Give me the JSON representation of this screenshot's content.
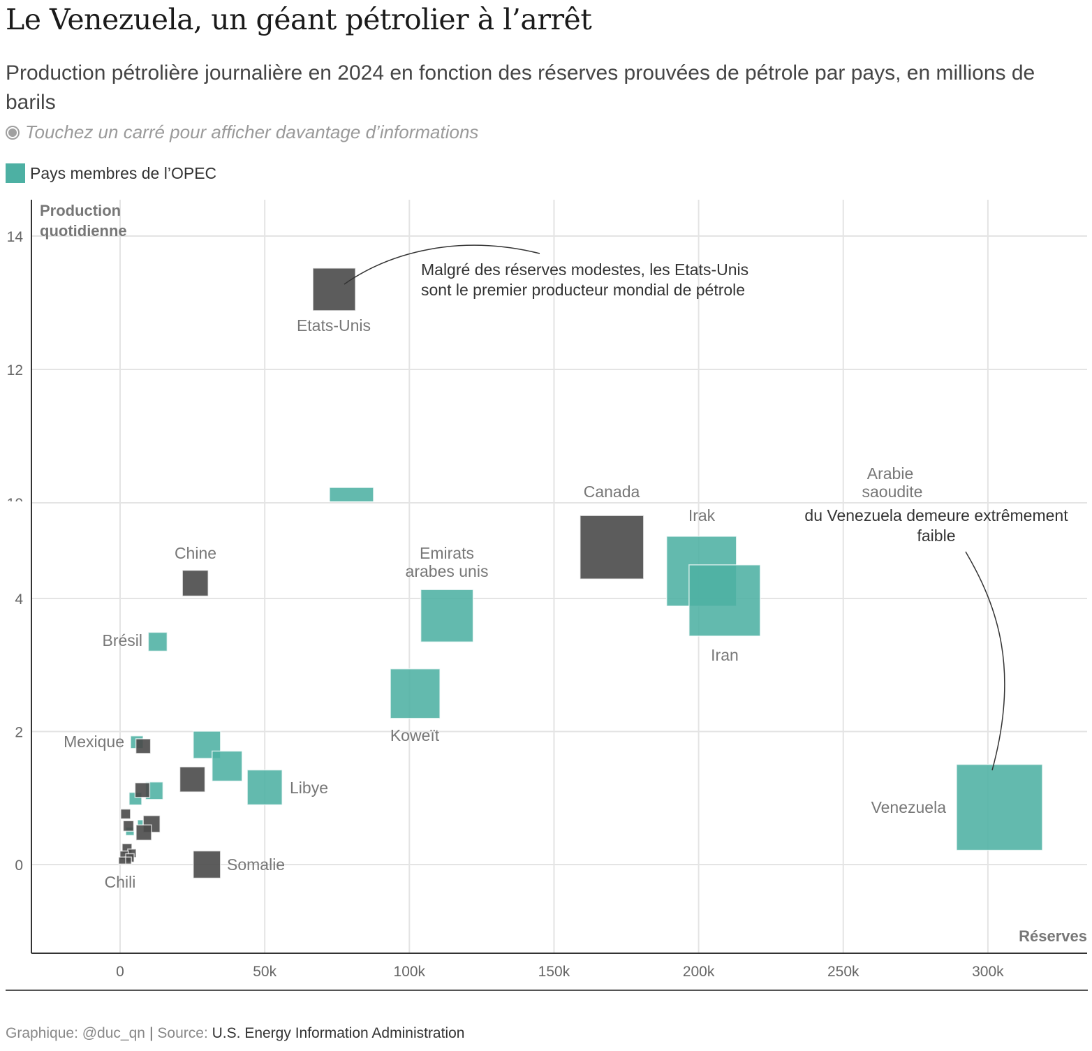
{
  "title": "Le Venezuela, un géant pétrolier à l’arrêt",
  "subtitle": "Production pétrolière journalière en 2024 en fonction des réserves prouvées de pétrole par pays, en millions de barils",
  "hint": "Touchez un carré pour afficher davantage d’informations",
  "legend": {
    "label": "Pays membres de l’OPEC",
    "color": "#4db0a3"
  },
  "colors": {
    "opec": "#4db0a3",
    "other": "#4a4a4a"
  },
  "chart_data": {
    "type": "scatter",
    "marker": "square",
    "xlabel": "Réserves",
    "ylabel_lines": [
      "Production",
      "quotidienne"
    ],
    "x_ticks": [
      "0",
      "50k",
      "100k",
      "150k",
      "200k",
      "250k",
      "300k"
    ],
    "x_tick_values": [
      0,
      50,
      100,
      150,
      200,
      250,
      300
    ],
    "y_ticks": [
      "14",
      "12",
      "10",
      "4",
      "2",
      "0"
    ],
    "y_tick_values": [
      14,
      12,
      10,
      4,
      2,
      0
    ],
    "xlim": [
      -30,
      335
    ],
    "ylim": [
      -1.3,
      14.5
    ],
    "grid": true,
    "points": [
      {
        "x": 74,
        "y": 13.2,
        "size": 61,
        "opec": false,
        "label": "Etats-Unis"
      },
      {
        "x": 80,
        "y": 9.9,
        "size": 63,
        "opec": true,
        "label": "Arabie saoudite"
      },
      {
        "x": 170,
        "y": 4.77,
        "size": 91,
        "opec": false,
        "label": "Canada"
      },
      {
        "x": 201,
        "y": 4.41,
        "size": 100,
        "opec": true,
        "label": "Irak"
      },
      {
        "x": 209,
        "y": 3.97,
        "size": 102,
        "opec": true,
        "label": "Iran"
      },
      {
        "x": 113,
        "y": 3.74,
        "size": 75,
        "opec": true,
        "label": "Emirats arabes unis"
      },
      {
        "x": 102,
        "y": 2.57,
        "size": 71,
        "opec": true,
        "label": "Koweït"
      },
      {
        "x": 304,
        "y": 0.86,
        "size": 123,
        "opec": true,
        "label": "Venezuela"
      },
      {
        "x": 26,
        "y": 4.23,
        "size": 37,
        "opec": false,
        "label": "Chine"
      },
      {
        "x": 13,
        "y": 3.35,
        "size": 27,
        "opec": true,
        "label": "Brésil"
      },
      {
        "x": 5.8,
        "y": 1.84,
        "size": 18,
        "opec": true,
        "label": ""
      },
      {
        "x": 8,
        "y": 1.78,
        "size": 21,
        "opec": false,
        "label": "Mexique"
      },
      {
        "x": 30,
        "y": 1.8,
        "size": 39,
        "opec": true,
        "label": ""
      },
      {
        "x": 37,
        "y": 1.48,
        "size": 43,
        "opec": true,
        "label": ""
      },
      {
        "x": 50,
        "y": 1.16,
        "size": 50,
        "opec": true,
        "label": "Libye"
      },
      {
        "x": 25,
        "y": 1.28,
        "size": 36,
        "opec": false,
        "label": ""
      },
      {
        "x": 11.8,
        "y": 1.11,
        "size": 25,
        "opec": true,
        "label": ""
      },
      {
        "x": 5.3,
        "y": 0.99,
        "size": 18,
        "opec": true,
        "label": ""
      },
      {
        "x": 7.7,
        "y": 1.12,
        "size": 21,
        "opec": false,
        "label": ""
      },
      {
        "x": 30,
        "y": 0,
        "size": 39,
        "opec": false,
        "label": "Somalie"
      },
      {
        "x": 3.4,
        "y": 0.5,
        "size": 12,
        "opec": true,
        "label": ""
      },
      {
        "x": 7,
        "y": 0.63,
        "size": 8,
        "opec": true,
        "label": ""
      },
      {
        "x": 1.9,
        "y": 0.76,
        "size": 14,
        "opec": false,
        "label": ""
      },
      {
        "x": 10.9,
        "y": 0.61,
        "size": 24,
        "opec": false,
        "label": ""
      },
      {
        "x": 8.2,
        "y": 0.48,
        "size": 22,
        "opec": false,
        "label": ""
      },
      {
        "x": 2.9,
        "y": 0.58,
        "size": 15,
        "opec": false,
        "label": ""
      },
      {
        "x": 2.4,
        "y": 0.24,
        "size": 14,
        "opec": false,
        "label": ""
      },
      {
        "x": 4.1,
        "y": 0.17,
        "size": 12,
        "opec": false,
        "label": ""
      },
      {
        "x": 1.4,
        "y": 0.14,
        "size": 12,
        "opec": false,
        "label": ""
      },
      {
        "x": 3.4,
        "y": 0.1,
        "size": 12,
        "opec": false,
        "label": ""
      },
      {
        "x": 2.7,
        "y": 0.06,
        "size": 10,
        "opec": false,
        "label": ""
      },
      {
        "x": 0.7,
        "y": 0.06,
        "size": 10,
        "opec": false,
        "label": "Chili"
      }
    ],
    "annotations": [
      {
        "lines": [
          "Malgré des réserves modestes, les Etats-Unis",
          "sont le premier producteur mondial de pétrole"
        ]
      },
      {
        "lines": [
          "du Venezuela demeure extrêmement",
          "faible"
        ]
      }
    ]
  },
  "footer": {
    "credit": "Graphique: @duc_qn",
    "source_label": "Source:",
    "source": "U.S. Energy Information Administration"
  }
}
